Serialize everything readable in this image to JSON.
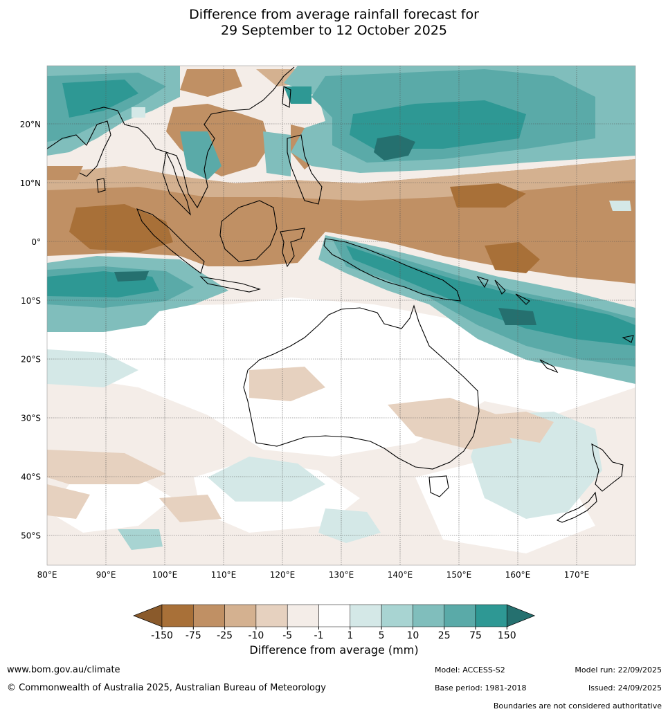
{
  "title_line1": "Difference from average rainfall forecast for",
  "title_line2": "29 September to 12 October 2025",
  "map": {
    "lon_range": [
      80,
      180
    ],
    "lat_range": [
      -55,
      30
    ],
    "lon_ticks": [
      "80°E",
      "90°E",
      "100°E",
      "110°E",
      "120°E",
      "130°E",
      "140°E",
      "150°E",
      "160°E",
      "170°E"
    ],
    "lat_ticks": [
      "20°N",
      "10°N",
      "0°",
      "10°S",
      "20°S",
      "30°S",
      "40°S",
      "50°S"
    ],
    "lat_values": [
      20,
      10,
      0,
      -10,
      -20,
      -30,
      -40,
      -50
    ],
    "lon_values": [
      80,
      90,
      100,
      110,
      120,
      130,
      140,
      150,
      160,
      170
    ]
  },
  "legend": {
    "label": "Difference from average (mm)",
    "ticks": [
      "-150",
      "-75",
      "-25",
      "-10",
      "-5",
      "-1",
      "1",
      "5",
      "10",
      "25",
      "75",
      "150"
    ],
    "colors": [
      "#8a5a2b",
      "#a87038",
      "#c09064",
      "#d4b190",
      "#e6d1bf",
      "#f4ede8",
      "#ffffff",
      "#d4e8e7",
      "#a8d4d2",
      "#80bebc",
      "#5aaaa8",
      "#2e9894",
      "#25706f"
    ]
  },
  "footer": {
    "website": "www.bom.gov.au/climate",
    "copyright": "© Commonwealth of Australia 2025, Australian Bureau of Meteorology",
    "model": "Model: ACCESS-S2",
    "base_period": "Base period: 1981-2018",
    "model_run": "Model run: 22/09/2025",
    "issued": "Issued: 24/09/2025",
    "disclaimer": "Boundaries are not considered authoritative"
  }
}
